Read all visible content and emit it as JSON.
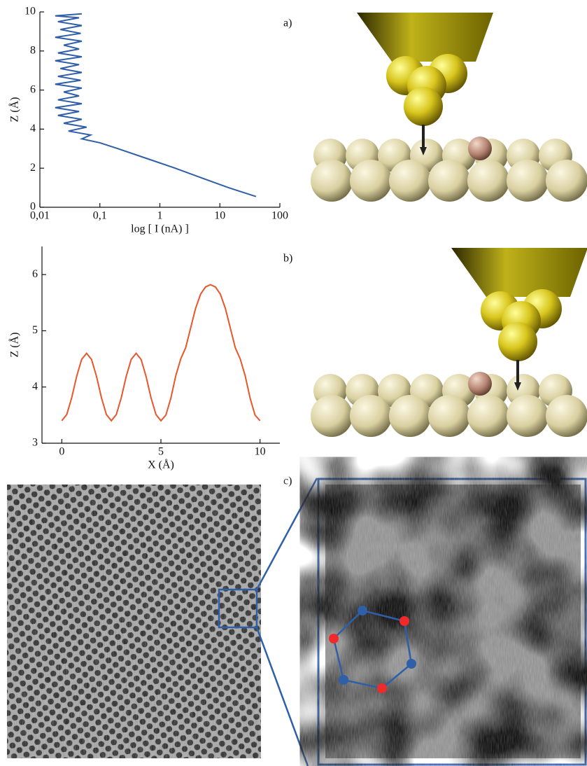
{
  "panel_labels": [
    "a)",
    "b)",
    "c)"
  ],
  "chart_data": [
    {
      "type": "line",
      "x_scale": "log",
      "xlabel": "log [ I (nA) ]",
      "ylabel": "Z (Å)",
      "xlim": [
        0.01,
        100
      ],
      "xticks": [
        {
          "value": 0.01,
          "label": "0,01"
        },
        {
          "value": 0.1,
          "label": "0,1"
        },
        1,
        10,
        100
      ],
      "ylim": [
        0,
        10
      ],
      "yticks": [
        0,
        2,
        4,
        6,
        8,
        10
      ],
      "color": "#2f5fa8",
      "x": [
        0.05,
        0.018,
        0.045,
        0.02,
        0.05,
        0.022,
        0.048,
        0.018,
        0.05,
        0.025,
        0.045,
        0.02,
        0.05,
        0.018,
        0.045,
        0.022,
        0.05,
        0.02,
        0.048,
        0.018,
        0.05,
        0.025,
        0.045,
        0.02,
        0.05,
        0.018,
        0.045,
        0.02,
        0.05,
        0.025,
        0.06,
        0.03,
        0.07,
        0.05,
        0.1,
        0.2,
        0.6,
        1.8,
        5,
        14,
        40
      ],
      "values": [
        9.9,
        9.8,
        9.7,
        9.5,
        9.3,
        9.1,
        8.9,
        8.7,
        8.5,
        8.3,
        8.1,
        7.9,
        7.7,
        7.5,
        7.3,
        7.1,
        6.9,
        6.7,
        6.5,
        6.3,
        6.1,
        5.9,
        5.7,
        5.5,
        5.3,
        5.1,
        4.9,
        4.7,
        4.5,
        4.3,
        4.1,
        3.9,
        3.7,
        3.5,
        3.3,
        3.0,
        2.5,
        2.0,
        1.5,
        1.0,
        0.55
      ]
    },
    {
      "type": "line",
      "xlabel": "X (Å)",
      "ylabel": "Z (Å)",
      "xlim": [
        -1,
        11
      ],
      "xticks": [
        0,
        5,
        10
      ],
      "ylim": [
        3,
        6.5
      ],
      "yticks": [
        3,
        4,
        5,
        6
      ],
      "color": "#e8562a",
      "x": [
        0,
        0.25,
        0.5,
        0.75,
        1,
        1.25,
        1.5,
        1.75,
        2,
        2.25,
        2.5,
        2.75,
        3,
        3.25,
        3.5,
        3.75,
        4,
        4.25,
        4.5,
        4.75,
        5,
        5.25,
        5.5,
        5.75,
        6,
        6.25,
        6.5,
        6.75,
        7,
        7.25,
        7.5,
        7.75,
        8,
        8.25,
        8.5,
        8.75,
        9,
        9.25,
        9.5,
        9.75,
        10
      ],
      "values": [
        3.4,
        3.51,
        3.81,
        4.19,
        4.49,
        4.6,
        4.49,
        4.19,
        3.81,
        3.51,
        3.4,
        3.51,
        3.81,
        4.19,
        4.49,
        4.6,
        4.49,
        4.19,
        3.81,
        3.51,
        3.4,
        3.5,
        3.8,
        4.2,
        4.5,
        4.7,
        5.05,
        5.4,
        5.65,
        5.78,
        5.82,
        5.78,
        5.65,
        5.4,
        5.05,
        4.7,
        4.5,
        4.2,
        3.8,
        3.5,
        3.4
      ]
    }
  ]
}
